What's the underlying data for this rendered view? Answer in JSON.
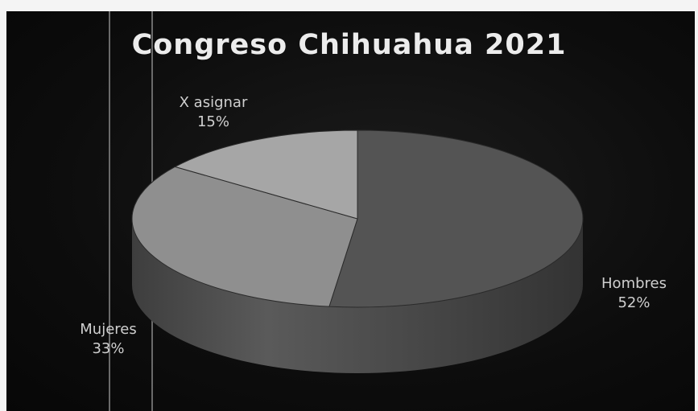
{
  "chart_data": {
    "type": "pie",
    "title": "Congreso Chihuahua 2021",
    "categories": [
      "Hombres",
      "Mujeres",
      "X asignar"
    ],
    "values": [
      52,
      33,
      15
    ],
    "value_labels": [
      "52%",
      "33%",
      "15%"
    ],
    "colors": [
      "#545454",
      "#8f8f8f",
      "#a6a6a6"
    ],
    "legend": "none",
    "style": "3d"
  }
}
